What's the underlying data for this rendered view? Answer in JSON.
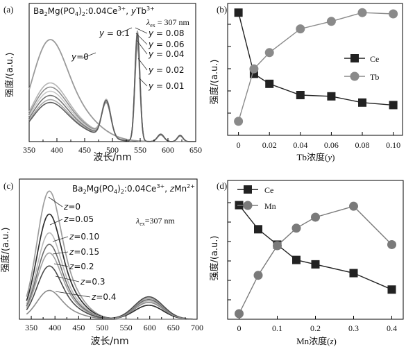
{
  "chart_data": [
    {
      "panel": "(a)",
      "type": "line",
      "legend_title": "Ba2Mg(PO4)2:0.04Ce3+, yTb3+",
      "annotation": "λex = 307 nm",
      "xlabel": "波长/nm",
      "ylabel": "强度/(a.u.)",
      "xlim": [
        350,
        650
      ],
      "ylim": [
        0,
        1
      ],
      "x_ticks": [
        350,
        400,
        450,
        500,
        550,
        600,
        650
      ],
      "series": [
        {
          "name": "y=0",
          "ce_peak": 0.73,
          "tb_scale": 0.0,
          "color": "#9a9a9a",
          "width": 1.8
        },
        {
          "name": "y=0.01",
          "ce_peak": 0.42,
          "tb_scale": 0.78,
          "color": "#b4b4b4",
          "width": 1.6
        },
        {
          "name": "y=0.02",
          "ce_peak": 0.39,
          "tb_scale": 0.81,
          "color": "#8f8f8f",
          "width": 1.6
        },
        {
          "name": "y=0.04",
          "ce_peak": 0.36,
          "tb_scale": 0.86,
          "color": "#c8c8c8",
          "width": 1.6
        },
        {
          "name": "y=0.06",
          "ce_peak": 0.33,
          "tb_scale": 0.88,
          "color": "#767676",
          "width": 1.6
        },
        {
          "name": "y=0.08",
          "ce_peak": 0.3,
          "tb_scale": 0.91,
          "color": "#a8a8a8",
          "width": 1.6
        },
        {
          "name": "y=0.1",
          "ce_peak": 0.28,
          "tb_scale": 0.89,
          "color": "#5c5c5c",
          "width": 1.6
        }
      ]
    },
    {
      "panel": "(b)",
      "type": "line",
      "xlabel": "Tb浓度(y)",
      "ylabel": "强度/(a.u.)",
      "x": [
        0,
        0.01,
        0.02,
        0.04,
        0.06,
        0.08,
        0.1
      ],
      "x_tick_labels": [
        "0",
        "0.02",
        "0.04",
        "0.06",
        "0.08",
        "0.10"
      ],
      "x_ticks": [
        0,
        0.02,
        0.04,
        0.06,
        0.08,
        0.1
      ],
      "xlim": [
        -0.007,
        0.106
      ],
      "ylim": [
        0,
        1
      ],
      "legend_position": "right",
      "series": [
        {
          "name": "Ce",
          "marker": "square",
          "color": "#222222",
          "values": [
            0.96,
            0.47,
            0.39,
            0.3,
            0.29,
            0.24,
            0.22
          ]
        },
        {
          "name": "Tb",
          "marker": "circle",
          "color": "#8a8a8a",
          "values": [
            0.09,
            0.51,
            0.64,
            0.83,
            0.89,
            0.96,
            0.95
          ]
        }
      ]
    },
    {
      "panel": "(c)",
      "type": "line",
      "legend_title": "Ba2Mg(PO4)2:0.04Ce3+, zMn2+",
      "annotation": "λex=307 nm",
      "xlabel": "波长/nm",
      "ylabel": "强度/(a.u.)",
      "xlim": [
        325,
        700
      ],
      "ylim": [
        0,
        1
      ],
      "x_ticks": [
        350,
        400,
        450,
        500,
        550,
        600,
        650,
        700
      ],
      "series": [
        {
          "name": "z=0",
          "ce_peak": 0.89,
          "mn_peak": 0.0,
          "color": "#9d9d9d",
          "width": 1.7
        },
        {
          "name": "z=0.05",
          "ce_peak": 0.73,
          "mn_peak": 0.1,
          "color": "#2e2e2e",
          "width": 1.7
        },
        {
          "name": "z=0.10",
          "ce_peak": 0.6,
          "mn_peak": 0.13,
          "color": "#b8b8b8",
          "width": 1.6
        },
        {
          "name": "z=0.15",
          "ce_peak": 0.52,
          "mn_peak": 0.14,
          "color": "#6a6a6a",
          "width": 1.6
        },
        {
          "name": "z=0.2",
          "ce_peak": 0.46,
          "mn_peak": 0.15,
          "color": "#a0a0a0",
          "width": 1.6
        },
        {
          "name": "z=0.3",
          "ce_peak": 0.37,
          "mn_peak": 0.16,
          "color": "#4a4a4a",
          "width": 1.6
        },
        {
          "name": "z=0.4",
          "ce_peak": 0.2,
          "mn_peak": 0.12,
          "color": "#8c8c8c",
          "width": 1.6
        }
      ]
    },
    {
      "panel": "(d)",
      "type": "line",
      "xlabel": "Mn浓度(z)",
      "ylabel": "强度/(a.u.)",
      "x": [
        0,
        0.05,
        0.1,
        0.15,
        0.2,
        0.3,
        0.4
      ],
      "x_ticks": [
        0,
        0.1,
        0.2,
        0.3,
        0.4
      ],
      "x_tick_labels": [
        "0",
        "0.1",
        "0.2",
        "0.3",
        "0.4"
      ],
      "xlim": [
        -0.03,
        0.43
      ],
      "ylim": [
        0,
        1
      ],
      "legend_position": "top-left",
      "series": [
        {
          "name": "Ce",
          "marker": "square",
          "color": "#222222",
          "values": [
            0.99,
            0.77,
            0.63,
            0.49,
            0.45,
            0.37,
            0.22
          ]
        },
        {
          "name": "Mn",
          "marker": "circle",
          "color": "#7a7a7a",
          "values": [
            0.0,
            0.35,
            0.62,
            0.78,
            0.88,
            0.98,
            0.63
          ]
        }
      ]
    }
  ]
}
